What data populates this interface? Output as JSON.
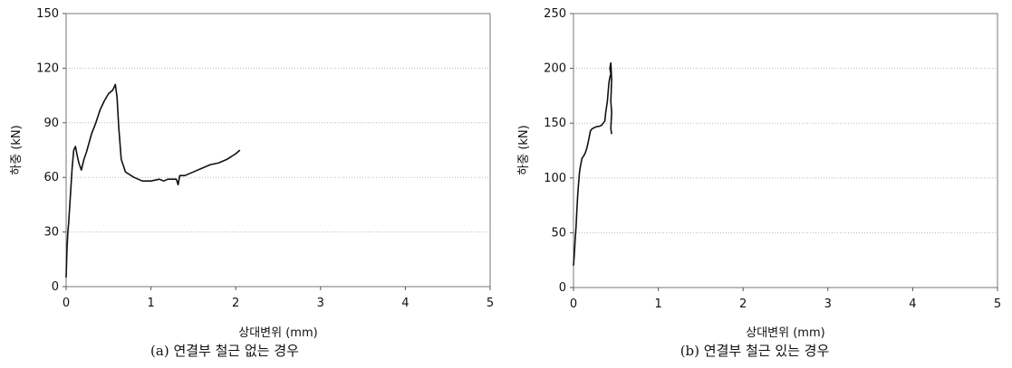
{
  "charts": [
    {
      "id": "a",
      "caption": "(a) 연결부 철근 없는 경우",
      "xlabel": "상대변위 (mm)",
      "ylabel": "하중 (kN)"
    },
    {
      "id": "b",
      "caption": "(b) 연결부 철근 있는 경우",
      "xlabel": "상대변위 (mm)",
      "ylabel": "하중 (kN)"
    }
  ],
  "chart_data": [
    {
      "type": "line",
      "title": "",
      "xlabel": "상대변위 (mm)",
      "ylabel": "하중 (kN)",
      "xlim": [
        0,
        5
      ],
      "ylim": [
        0,
        150
      ],
      "xticks": [
        "0",
        "1",
        "2",
        "3",
        "4",
        "5"
      ],
      "yticks": [
        "0",
        "30",
        "60",
        "90",
        "120",
        "150"
      ],
      "grid": "horizontal",
      "series": [
        {
          "x": [
            0,
            0.01,
            0.02,
            0.03,
            0.05,
            0.07,
            0.09,
            0.11,
            0.13,
            0.15,
            0.18,
            0.21,
            0.24,
            0.3,
            0.35,
            0.4,
            0.45,
            0.5,
            0.55,
            0.58,
            0.6,
            0.62,
            0.65,
            0.7,
            0.8,
            0.9,
            1.0,
            1.1,
            1.15,
            1.2,
            1.3,
            1.32,
            1.34,
            1.4,
            1.5,
            1.6,
            1.7,
            1.8,
            1.9,
            2.0,
            2.05
          ],
          "y": [
            5,
            20,
            30,
            35,
            50,
            65,
            75,
            77,
            72,
            68,
            64,
            70,
            74,
            84,
            90,
            97,
            102,
            106,
            108,
            111,
            104,
            88,
            70,
            63,
            60,
            58,
            58,
            59,
            58,
            59,
            59,
            56,
            61,
            61,
            63,
            65,
            67,
            68,
            70,
            73,
            75
          ]
        }
      ]
    },
    {
      "type": "line",
      "title": "",
      "xlabel": "상대변위 (mm)",
      "ylabel": "하중 (kN)",
      "xlim": [
        0,
        5
      ],
      "ylim": [
        0,
        250
      ],
      "xticks": [
        "0",
        "1",
        "2",
        "3",
        "4",
        "5"
      ],
      "yticks": [
        "0",
        "50",
        "100",
        "150",
        "200",
        "250"
      ],
      "grid": "horizontal",
      "series": [
        {
          "x": [
            0,
            0.01,
            0.02,
            0.03,
            0.04,
            0.05,
            0.06,
            0.07,
            0.08,
            0.1,
            0.12,
            0.14,
            0.16,
            0.18,
            0.2,
            0.22,
            0.25,
            0.28,
            0.3,
            0.33,
            0.35,
            0.37,
            0.38,
            0.39,
            0.4,
            0.41,
            0.42,
            0.43,
            0.44,
            0.43,
            0.44,
            0.45,
            0.44,
            0.45,
            0.44,
            0.45
          ],
          "y": [
            20,
            30,
            45,
            55,
            70,
            85,
            95,
            105,
            110,
            118,
            120,
            123,
            128,
            135,
            143,
            145,
            146,
            147,
            147,
            148,
            150,
            152,
            160,
            165,
            170,
            180,
            188,
            192,
            195,
            200,
            205,
            190,
            170,
            160,
            145,
            140
          ]
        }
      ]
    }
  ]
}
